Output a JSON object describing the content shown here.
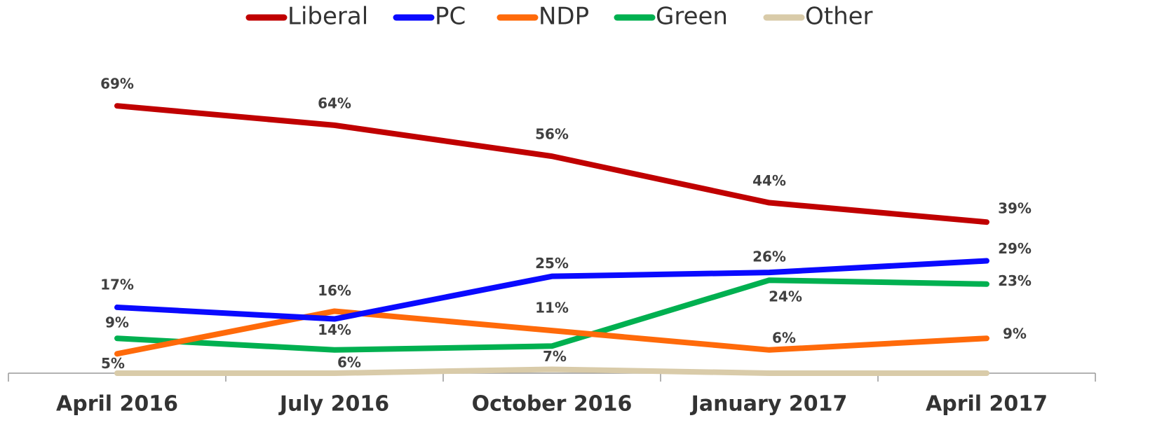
{
  "chart_data": {
    "type": "line",
    "categories": [
      "April 2016",
      "July 2016",
      "October 2016",
      "January 2017",
      "April 2017"
    ],
    "ylim": [
      0,
      75
    ],
    "legend": "top",
    "series": [
      {
        "name": "Liberal",
        "color": "#c00000",
        "values": [
          69,
          64,
          56,
          44,
          39
        ],
        "value_labels": [
          "69%",
          "64%",
          "56%",
          "44%",
          "39%"
        ]
      },
      {
        "name": "PC",
        "color": "#0a0aff",
        "values": [
          17,
          14,
          25,
          26,
          29
        ],
        "value_labels": [
          "17%",
          "14%",
          "25%",
          "26%",
          "29%"
        ]
      },
      {
        "name": "NDP",
        "color": "#ff6a0a",
        "values": [
          5,
          16,
          11,
          6,
          9
        ],
        "value_labels": [
          "5%",
          "16%",
          "11%",
          "6%",
          "9%"
        ]
      },
      {
        "name": "Green",
        "color": "#00b050",
        "values": [
          9,
          6,
          7,
          24,
          23
        ],
        "value_labels": [
          "9%",
          "6%",
          "7%",
          "24%",
          "23%"
        ]
      },
      {
        "name": "Other",
        "color": "#d9cba9",
        "values": [
          0,
          0,
          1,
          0,
          0
        ]
      }
    ]
  }
}
